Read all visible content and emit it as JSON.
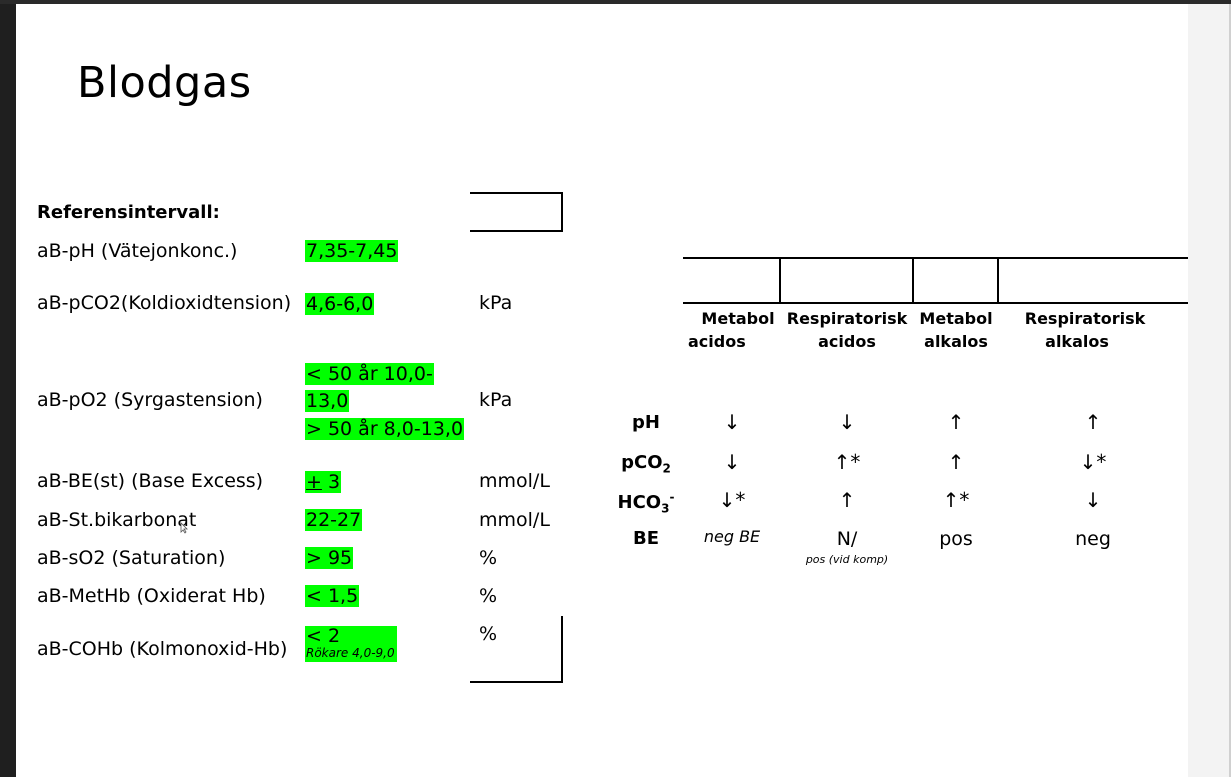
{
  "slide": {
    "title": "Blodgas",
    "reference_heading": "Referensintervall:",
    "rows": [
      {
        "label": "aB-pH (Vätejonkonc.)",
        "value": "7,35-7,45",
        "unit": ""
      },
      {
        "label": "aB-pCO2(Koldioxidtension)",
        "value": "4,6-6,0",
        "unit": "kPa"
      },
      {
        "label": "aB-pO2 (Syrgastension)",
        "value_line1": "< 50 år 10,0-",
        "value_line2": "13,0",
        "value_line3": "> 50 år 8,0-13,0",
        "unit": "kPa"
      },
      {
        "label": "aB-BE(st) (Base Excess)",
        "value_sign": "+",
        "value": " 3",
        "unit": "mmol/L"
      },
      {
        "label": "aB-St.bikarbonat",
        "value": "22-27",
        "unit": "mmol/L"
      },
      {
        "label": "aB-sO2 (Saturation)",
        "value": "> 95",
        "unit": "%"
      },
      {
        "label": "aB-MetHb (Oxiderat Hb)",
        "value": "< 1,5",
        "unit": "%"
      },
      {
        "label": "aB-COHb (Kolmonoxid-Hb)",
        "value": "< 2",
        "note": "Rökare 4,0-9,0",
        "unit": "%"
      }
    ]
  },
  "acidbase": {
    "columns": [
      {
        "line1": "Metabol",
        "line2": "acidos"
      },
      {
        "line1": "Respiratorisk",
        "line2": "acidos"
      },
      {
        "line1": "Metabol",
        "line2": "alkalos"
      },
      {
        "line1": "Respiratorisk",
        "line2": "alkalos"
      }
    ],
    "rows": [
      {
        "label": "pH",
        "cells": [
          "↓",
          "↓",
          "↑",
          "↑"
        ]
      },
      {
        "label_main": "pCO",
        "label_sub": "2",
        "cells": [
          "↓",
          "↑*",
          "↑",
          "↓*"
        ]
      },
      {
        "label_main": "HCO",
        "label_sub": "3",
        "label_sup": "-",
        "cells": [
          "↓*",
          "↑",
          "↑*",
          "↓"
        ]
      },
      {
        "label": "BE",
        "cells": [
          "neg BE",
          "N/",
          "pos",
          "neg"
        ],
        "cell2_note": "pos (vid komp)"
      }
    ]
  }
}
